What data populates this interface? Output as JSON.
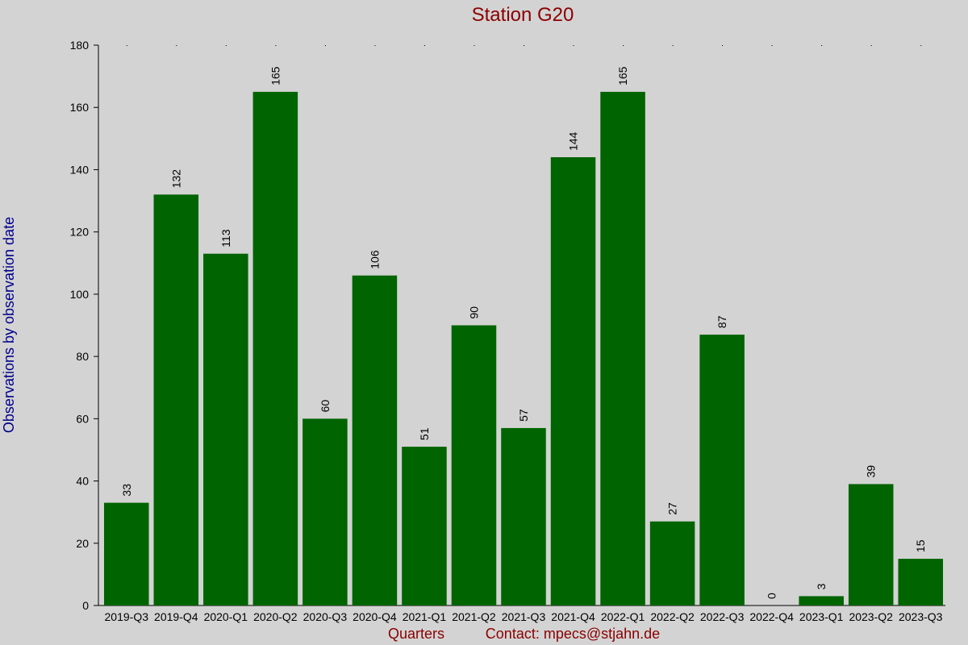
{
  "chart_data": {
    "type": "bar",
    "title": "Station G20",
    "xlabel": "Quarters",
    "ylabel": "Observations by observation date",
    "contact": "Contact: mpecs@stjahn.de",
    "categories": [
      "2019-Q3",
      "2019-Q4",
      "2020-Q1",
      "2020-Q2",
      "2020-Q3",
      "2020-Q4",
      "2021-Q1",
      "2021-Q2",
      "2021-Q3",
      "2021-Q4",
      "2022-Q1",
      "2022-Q2",
      "2022-Q3",
      "2022-Q4",
      "2023-Q1",
      "2023-Q2",
      "2023-Q3"
    ],
    "values": [
      33,
      132,
      113,
      165,
      60,
      106,
      51,
      90,
      57,
      144,
      165,
      27,
      87,
      0,
      3,
      39,
      15
    ],
    "ylim": [
      0,
      180
    ],
    "yticks": [
      0,
      20,
      40,
      60,
      80,
      100,
      120,
      140,
      160,
      180
    ],
    "grid": false,
    "colors": {
      "bar": "#006400",
      "background": "#d3d3d3",
      "title": "#8b0000",
      "ylabel": "#00008b",
      "xlabel": "#8b0000"
    }
  }
}
